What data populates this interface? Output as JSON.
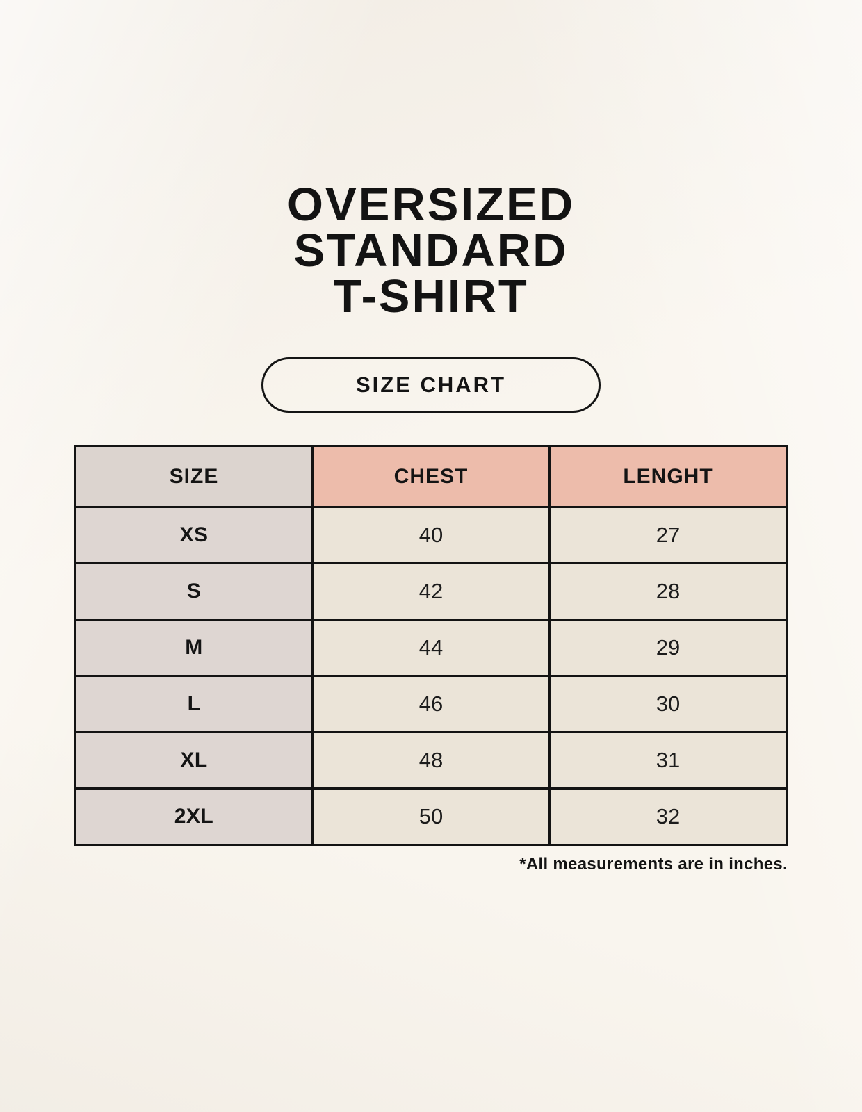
{
  "header": {
    "title_lines": [
      "OVERSIZED",
      "STANDARD",
      "T-SHIRT"
    ],
    "badge_label": "SIZE CHART"
  },
  "table": {
    "headers": [
      "SIZE",
      "CHEST",
      "LENGHT"
    ],
    "rows": [
      {
        "size": "XS",
        "chest": "40",
        "length": "27"
      },
      {
        "size": "S",
        "chest": "42",
        "length": "28"
      },
      {
        "size": "M",
        "chest": "44",
        "length": "29"
      },
      {
        "size": "L",
        "chest": "46",
        "length": "30"
      },
      {
        "size": "XL",
        "chest": "48",
        "length": "31"
      },
      {
        "size": "2XL",
        "chest": "50",
        "length": "32"
      }
    ]
  },
  "footnote": "*All measurements are in inches.",
  "colors": {
    "page_background": "#f9f5ee",
    "header_size_bg": "#dcd4cf",
    "header_measurement_bg": "#edbcab",
    "size_column_bg": "#ded6d2",
    "value_cell_bg": "#ebe4d8",
    "table_border": "#131313",
    "text": "#141414"
  },
  "chart_data": {
    "type": "table",
    "title": "OVERSIZED STANDARD T-SHIRT",
    "subtitle": "SIZE CHART",
    "columns": [
      "SIZE",
      "CHEST",
      "LENGHT"
    ],
    "rows": [
      [
        "XS",
        40,
        27
      ],
      [
        "S",
        42,
        28
      ],
      [
        "M",
        44,
        29
      ],
      [
        "L",
        46,
        30
      ],
      [
        "XL",
        48,
        31
      ],
      [
        "2XL",
        50,
        32
      ]
    ],
    "units": "inches",
    "note": "*All measurements are in inches."
  }
}
